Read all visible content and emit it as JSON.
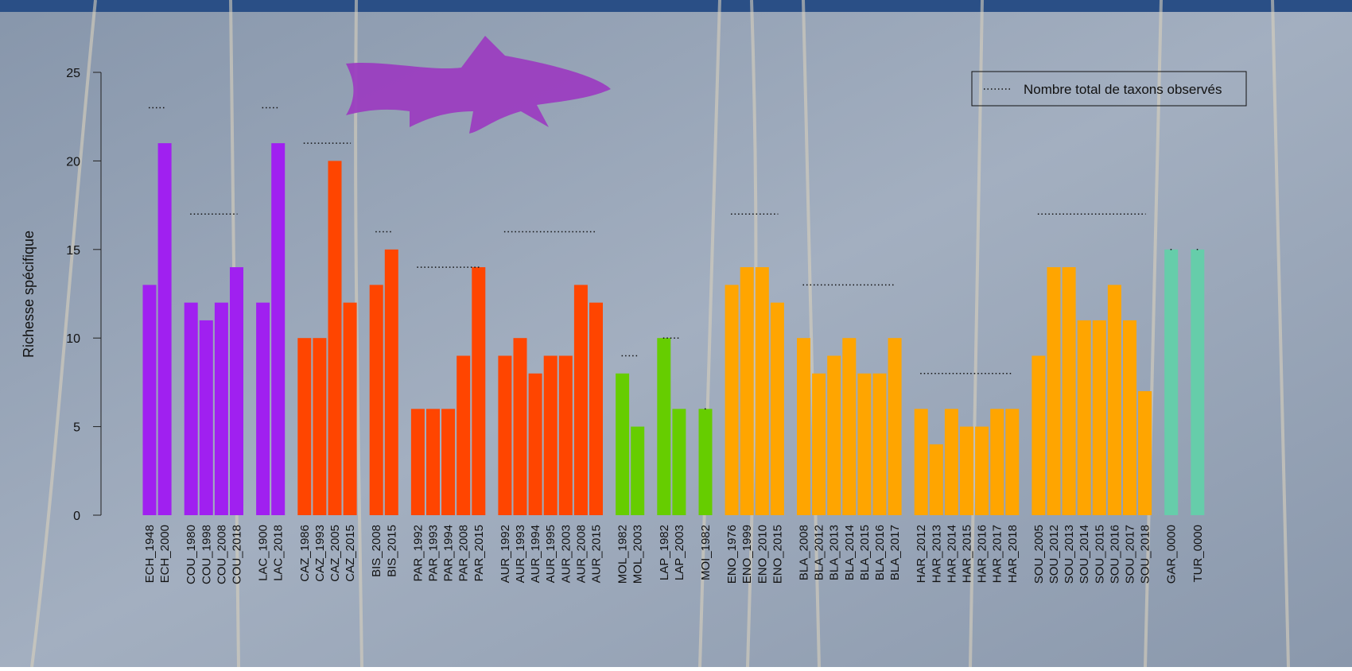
{
  "chart_data": {
    "type": "bar",
    "ylabel": "Richesse spécifique",
    "ylim": [
      0,
      25
    ],
    "yticks": [
      0,
      5,
      10,
      15,
      20,
      25
    ],
    "legend": "topright",
    "legend_label": "Nombre total de taxons observés",
    "groups": [
      {
        "color": "#a020f0",
        "total": 23,
        "categories": [
          "ECH_1948",
          "ECH_2000"
        ],
        "values": [
          13,
          21
        ]
      },
      {
        "color": "#a020f0",
        "total": 17,
        "categories": [
          "COU_1980",
          "COU_1998",
          "COU_2008",
          "COU_2018"
        ],
        "values": [
          12,
          11,
          12,
          14
        ]
      },
      {
        "color": "#a020f0",
        "total": 23,
        "categories": [
          "LAC_1900",
          "LAC_2018"
        ],
        "values": [
          12,
          21
        ]
      },
      {
        "color": "#ff4500",
        "total": 21,
        "categories": [
          "CAZ_1986",
          "CAZ_1993",
          "CAZ_2005",
          "CAZ_2015"
        ],
        "values": [
          10,
          10,
          20,
          12
        ]
      },
      {
        "color": "#ff4500",
        "total": 16,
        "categories": [
          "BIS_2008",
          "BIS_2015"
        ],
        "values": [
          13,
          15
        ]
      },
      {
        "color": "#ff4500",
        "total": 14,
        "categories": [
          "PAR_1992",
          "PAR_1993",
          "PAR_1994",
          "PAR_2008",
          "PAR_2015"
        ],
        "values": [
          6,
          6,
          6,
          9,
          14
        ]
      },
      {
        "color": "#ff4500",
        "total": 16,
        "categories": [
          "AUR_1992",
          "AUR_1993",
          "AUR_1994",
          "AUR_1995",
          "AUR_2003",
          "AUR_2008",
          "AUR_2015"
        ],
        "values": [
          9,
          10,
          8,
          9,
          9,
          13,
          12
        ]
      },
      {
        "color": "#66cd00",
        "total": 9,
        "categories": [
          "MOL_1982",
          "MOL_2003"
        ],
        "values": [
          8,
          5
        ]
      },
      {
        "color": "#66cd00",
        "total": 10,
        "categories": [
          "LAP_1982",
          "LAP_2003"
        ],
        "values": [
          10,
          6
        ]
      },
      {
        "color": "#66cd00",
        "total": 6,
        "categories": [
          "MOI_1982"
        ],
        "values": [
          6
        ]
      },
      {
        "color": "#ffa500",
        "total": 17,
        "categories": [
          "ENO_1976",
          "ENO_1999",
          "ENO_2010",
          "ENO_2015"
        ],
        "values": [
          13,
          14,
          14,
          12
        ]
      },
      {
        "color": "#ffa500",
        "total": 13,
        "categories": [
          "BLA_2008",
          "BLA_2012",
          "BLA_2013",
          "BLA_2014",
          "BLA_2015",
          "BLA_2016",
          "BLA_2017"
        ],
        "values": [
          10,
          8,
          9,
          10,
          8,
          8,
          10
        ]
      },
      {
        "color": "#ffa500",
        "total": 8,
        "categories": [
          "HAR_2012",
          "HAR_2013",
          "HAR_2014",
          "HAR_2015",
          "HAR_2016",
          "HAR_2017",
          "HAR_2018"
        ],
        "values": [
          6,
          4,
          6,
          5,
          5,
          6,
          6
        ]
      },
      {
        "color": "#ffa500",
        "total": 17,
        "categories": [
          "SOU_2005",
          "SOU_2012",
          "SOU_2013",
          "SOU_2014",
          "SOU_2015",
          "SOU_2016",
          "SOU_2017",
          "SOU_2018"
        ],
        "values": [
          9,
          14,
          14,
          11,
          11,
          13,
          11,
          7
        ]
      },
      {
        "color": "#66cdaa",
        "total": 15,
        "categories": [
          "GAR_0000"
        ],
        "values": [
          15
        ]
      },
      {
        "color": "#66cdaa",
        "total": 15,
        "categories": [
          "TUR_0000"
        ],
        "values": [
          15
        ]
      }
    ]
  }
}
